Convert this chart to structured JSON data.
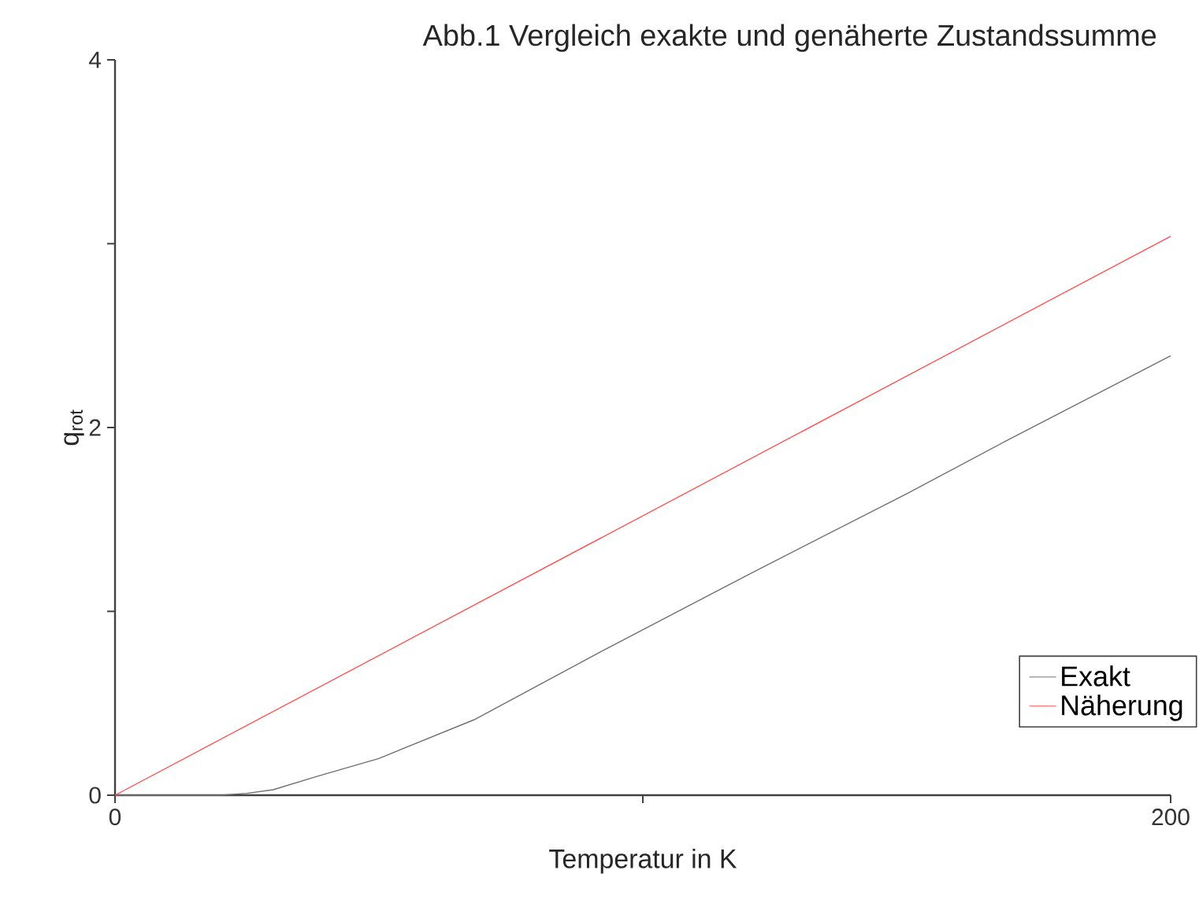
{
  "chart_data": {
    "type": "line",
    "title": "Abb.1 Vergleich exakte und genäherte Zustandssumme",
    "xlabel": "Temperatur in K",
    "ylabel": "q$_{rot}$",
    "xlim": [
      0,
      200
    ],
    "ylim": [
      0,
      4
    ],
    "xticks": [
      0,
      {
        "value": 100,
        "label": null
      },
      200
    ],
    "yticks": [
      0,
      {
        "value": 1,
        "label": null
      },
      2,
      {
        "value": 3,
        "label": null
      },
      4
    ],
    "series": [
      {
        "name": "Exakt",
        "color": "#707070",
        "x": [
          0,
          20,
          25,
          30,
          38,
          50,
          68,
          92,
          120,
          150,
          169,
          200
        ],
        "values": [
          0,
          0,
          0.01,
          0.03,
          0.1,
          0.2,
          0.41,
          0.78,
          1.2,
          1.64,
          1.93,
          2.39
        ]
      },
      {
        "name": "Näherung",
        "color": "#ff5050",
        "x": [
          0,
          200
        ],
        "values": [
          0,
          3.04
        ]
      }
    ],
    "legend": "bottom right",
    "grid": false,
    "marker": "none",
    "line_style": "solid"
  }
}
